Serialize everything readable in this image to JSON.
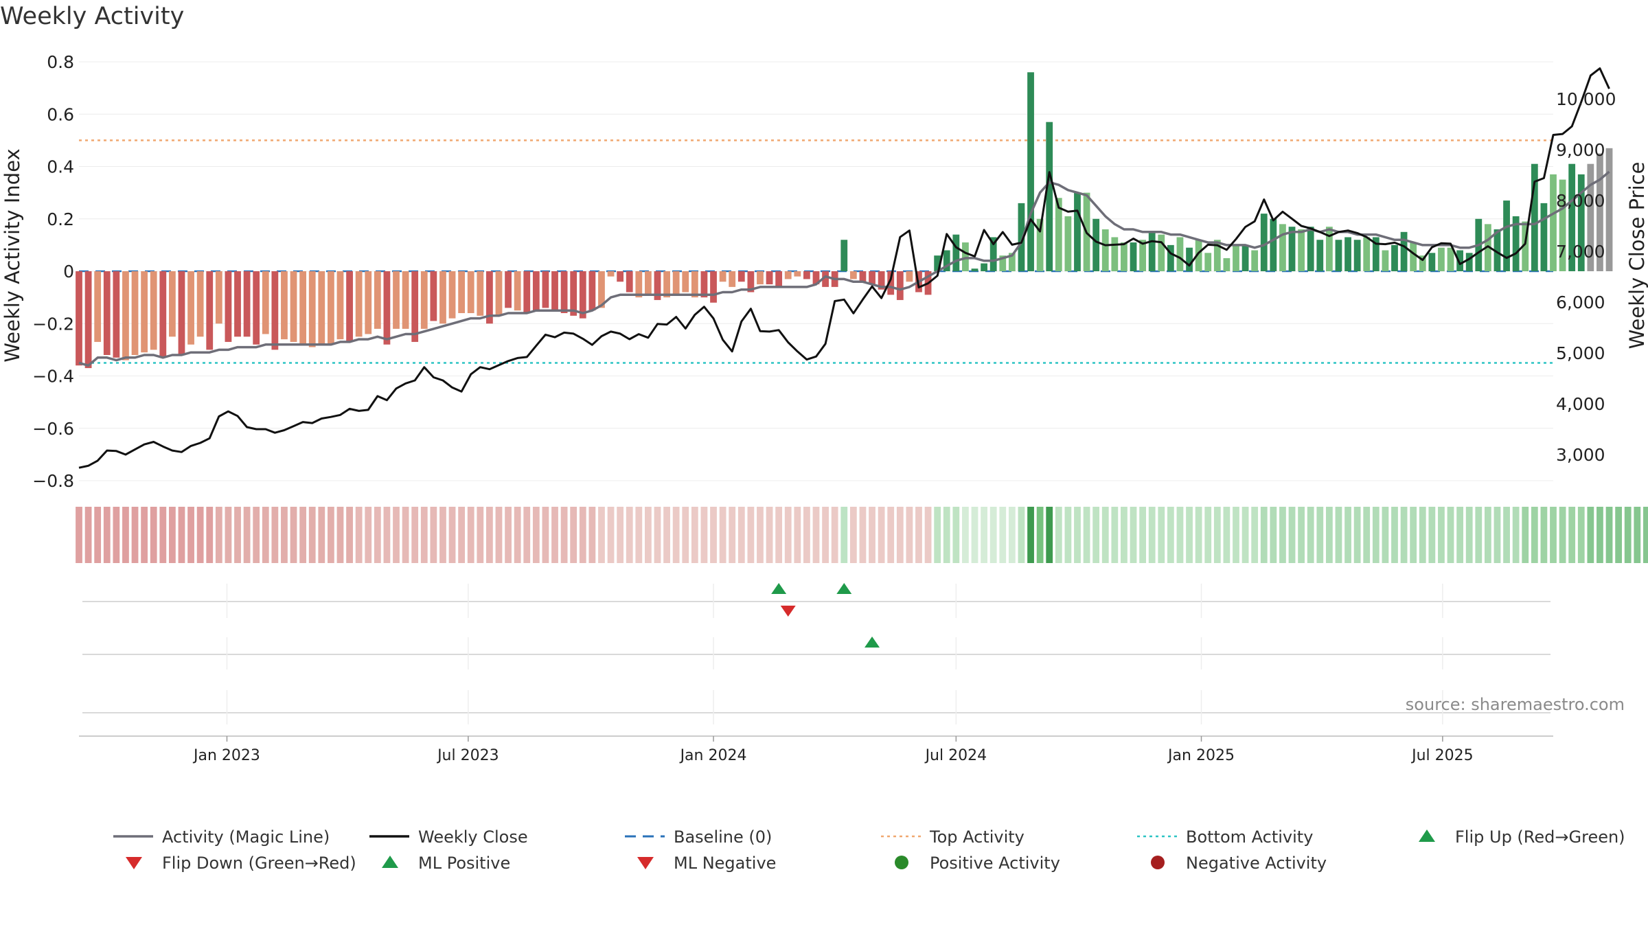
{
  "chart_data": {
    "type": "bar",
    "title": "Weekly Activity",
    "ylabel_left": "Weekly Activity Index",
    "ylabel_right": "Weekly Close Price",
    "left_ylim": [
      -0.8,
      0.8
    ],
    "left_ticks": [
      "0.8",
      "0.6",
      "0.4",
      "0.2",
      "0",
      "−0.2",
      "−0.4",
      "−0.6",
      "−0.8"
    ],
    "left_tick_values": [
      0.8,
      0.6,
      0.4,
      0.2,
      0,
      -0.2,
      -0.4,
      -0.6,
      -0.8
    ],
    "right_ticks": [
      "10,000",
      "9,000",
      "8,000",
      "7,000",
      "6,000",
      "5,000",
      "4,000",
      "3,000"
    ],
    "right_tick_values": [
      10000,
      9000,
      8000,
      7000,
      6000,
      5000,
      4000,
      3000
    ],
    "x_range": [
      "2022-09-12",
      "2025-09-22"
    ],
    "x_ticks": [
      {
        "label": "Jan 2023",
        "date": "2023-01-01"
      },
      {
        "label": "Jul 2023",
        "date": "2023-07-01"
      },
      {
        "label": "Jan 2024",
        "date": "2024-01-01"
      },
      {
        "label": "Jul 2024",
        "date": "2024-07-01"
      },
      {
        "label": "Jan 2025",
        "date": "2025-01-01"
      },
      {
        "label": "Jul 2025",
        "date": "2025-07-01"
      }
    ],
    "top_activity": 0.5,
    "bottom_activity": -0.35,
    "baseline": 0,
    "start_date": "2022-09-12",
    "activity": [
      -0.36,
      -0.37,
      -0.27,
      -0.32,
      -0.33,
      -0.34,
      -0.32,
      -0.31,
      -0.3,
      -0.33,
      -0.25,
      -0.32,
      -0.28,
      -0.25,
      -0.3,
      -0.2,
      -0.27,
      -0.25,
      -0.25,
      -0.28,
      -0.24,
      -0.3,
      -0.26,
      -0.27,
      -0.28,
      -0.29,
      -0.28,
      -0.28,
      -0.26,
      -0.27,
      -0.25,
      -0.24,
      -0.22,
      -0.28,
      -0.22,
      -0.22,
      -0.27,
      -0.22,
      -0.19,
      -0.2,
      -0.18,
      -0.16,
      -0.16,
      -0.17,
      -0.2,
      -0.17,
      -0.14,
      -0.15,
      -0.16,
      -0.15,
      -0.14,
      -0.15,
      -0.16,
      -0.17,
      -0.18,
      -0.15,
      -0.14,
      -0.02,
      -0.04,
      -0.08,
      -0.1,
      -0.09,
      -0.11,
      -0.1,
      -0.09,
      -0.08,
      -0.1,
      -0.1,
      -0.12,
      -0.04,
      -0.06,
      -0.04,
      -0.08,
      -0.05,
      -0.05,
      -0.06,
      -0.03,
      -0.02,
      -0.03,
      -0.05,
      -0.06,
      -0.06,
      0.12,
      -0.03,
      -0.04,
      -0.05,
      -0.07,
      -0.09,
      -0.11,
      -0.04,
      -0.08,
      -0.09,
      0.06,
      0.08,
      0.14,
      0.11,
      0.01,
      0.03,
      0.13,
      0.06,
      0.07,
      0.26,
      0.76,
      0.2,
      0.57,
      0.28,
      0.21,
      0.3,
      0.3,
      0.2,
      0.16,
      0.13,
      0.11,
      0.11,
      0.12,
      0.15,
      0.14,
      0.1,
      0.13,
      0.09,
      0.12,
      0.07,
      0.12,
      0.05,
      0.1,
      0.1,
      0.08,
      0.22,
      0.2,
      0.18,
      0.17,
      0.16,
      0.17,
      0.12,
      0.17,
      0.12,
      0.13,
      0.12,
      0.13,
      0.13,
      0.08,
      0.1,
      0.15,
      0.11,
      0.06,
      0.07,
      0.09,
      0.09,
      0.08,
      0.07,
      0.2,
      0.18,
      0.16,
      0.27,
      0.21,
      0.19,
      0.41,
      0.26,
      0.37,
      0.35,
      0.41,
      0.37,
      0.41,
      0.45,
      0.47
    ],
    "activity_colors": [
      "#c9585a",
      "#c9585a",
      "#e09474",
      "#c9585a",
      "#c9585a",
      "#e09474",
      "#e09474",
      "#e09474",
      "#e09474",
      "#c9585a",
      "#e09474",
      "#c9585a",
      "#e09474",
      "#e09474",
      "#c9585a",
      "#e09474",
      "#c9585a",
      "#c9585a",
      "#c9585a",
      "#c9585a",
      "#e09474",
      "#c9585a",
      "#e09474",
      "#e09474",
      "#e09474",
      "#e09474",
      "#e09474",
      "#e09474",
      "#e09474",
      "#c9585a",
      "#e09474",
      "#e09474",
      "#e09474",
      "#c9585a",
      "#e09474",
      "#e09474",
      "#c9585a",
      "#e09474",
      "#c9585a",
      "#e09474",
      "#e09474",
      "#e09474",
      "#e09474",
      "#e09474",
      "#c9585a",
      "#e09474",
      "#c9585a",
      "#e09474",
      "#c9585a",
      "#c9585a",
      "#c9585a",
      "#c9585a",
      "#c9585a",
      "#c9585a",
      "#c9585a",
      "#c9585a",
      "#e09474",
      "#e09474",
      "#c9585a",
      "#c9585a",
      "#e09474",
      "#e09474",
      "#c9585a",
      "#e09474",
      "#e09474",
      "#e09474",
      "#e09474",
      "#c9585a",
      "#c9585a",
      "#e09474",
      "#e09474",
      "#c9585a",
      "#c9585a",
      "#e09474",
      "#c9585a",
      "#c9585a",
      "#e09474",
      "#e09474",
      "#c9585a",
      "#c9585a",
      "#c9585a",
      "#c9585a",
      "#2e8b57",
      "#e09474",
      "#c9585a",
      "#c9585a",
      "#c9585a",
      "#c9585a",
      "#c9585a",
      "#e09474",
      "#c9585a",
      "#c9585a",
      "#2e8b57",
      "#2e8b57",
      "#2e8b57",
      "#7cbf7e",
      "#2e8b57",
      "#2e8b57",
      "#2e8b57",
      "#7cbf7e",
      "#7cbf7e",
      "#2e8b57",
      "#2e8b57",
      "#7cbf7e",
      "#2e8b57",
      "#7cbf7e",
      "#7cbf7e",
      "#2e8b57",
      "#7cbf7e",
      "#2e8b57",
      "#7cbf7e",
      "#7cbf7e",
      "#7cbf7e",
      "#2e8b57",
      "#7cbf7e",
      "#2e8b57",
      "#7cbf7e",
      "#2e8b57",
      "#7cbf7e",
      "#2e8b57",
      "#7cbf7e",
      "#7cbf7e",
      "#7cbf7e",
      "#7cbf7e",
      "#7cbf7e",
      "#2e8b57",
      "#7cbf7e",
      "#2e8b57",
      "#2e8b57",
      "#7cbf7e",
      "#2e8b57",
      "#7cbf7e",
      "#2e8b57",
      "#2e8b57",
      "#7cbf7e",
      "#2e8b57",
      "#2e8b57",
      "#2e8b57",
      "#7cbf7e",
      "#2e8b57",
      "#7cbf7e",
      "#2e8b57",
      "#2e8b57",
      "#7cbf7e",
      "#7cbf7e",
      "#2e8b57",
      "#7cbf7e",
      "#7cbf7e",
      "#2e8b57",
      "#2e8b57",
      "#2e8b57",
      "#7cbf7e",
      "#2e8b57",
      "#2e8b57",
      "#2e8b57",
      "#7cbf7e",
      "#2e8b57",
      "#2e8b57",
      "#7cbf7e",
      "#7cbf7e",
      "#2e8b57",
      "#2e8b57"
    ],
    "magic_line": [
      -0.35,
      -0.36,
      -0.33,
      -0.33,
      -0.34,
      -0.33,
      -0.33,
      -0.32,
      -0.32,
      -0.33,
      -0.32,
      -0.32,
      -0.31,
      -0.31,
      -0.31,
      -0.3,
      -0.3,
      -0.29,
      -0.29,
      -0.29,
      -0.28,
      -0.28,
      -0.28,
      -0.28,
      -0.28,
      -0.28,
      -0.28,
      -0.28,
      -0.27,
      -0.27,
      -0.26,
      -0.26,
      -0.25,
      -0.26,
      -0.25,
      -0.24,
      -0.24,
      -0.23,
      -0.22,
      -0.21,
      -0.2,
      -0.19,
      -0.18,
      -0.18,
      -0.17,
      -0.17,
      -0.16,
      -0.16,
      -0.16,
      -0.15,
      -0.15,
      -0.15,
      -0.15,
      -0.15,
      -0.16,
      -0.15,
      -0.13,
      -0.1,
      -0.09,
      -0.09,
      -0.09,
      -0.09,
      -0.09,
      -0.09,
      -0.09,
      -0.09,
      -0.09,
      -0.09,
      -0.09,
      -0.08,
      -0.08,
      -0.07,
      -0.07,
      -0.06,
      -0.06,
      -0.06,
      -0.06,
      -0.06,
      -0.06,
      -0.05,
      -0.02,
      -0.03,
      -0.03,
      -0.04,
      -0.04,
      -0.05,
      -0.06,
      -0.06,
      -0.07,
      -0.06,
      -0.04,
      -0.02,
      0.0,
      0.02,
      0.04,
      0.05,
      0.05,
      0.04,
      0.04,
      0.05,
      0.06,
      0.11,
      0.22,
      0.3,
      0.34,
      0.33,
      0.31,
      0.3,
      0.29,
      0.25,
      0.21,
      0.18,
      0.16,
      0.16,
      0.15,
      0.15,
      0.15,
      0.14,
      0.14,
      0.13,
      0.12,
      0.11,
      0.11,
      0.1,
      0.1,
      0.1,
      0.09,
      0.1,
      0.12,
      0.14,
      0.15,
      0.15,
      0.16,
      0.15,
      0.16,
      0.15,
      0.15,
      0.14,
      0.14,
      0.14,
      0.13,
      0.12,
      0.12,
      0.11,
      0.1,
      0.1,
      0.1,
      0.1,
      0.09,
      0.09,
      0.1,
      0.12,
      0.15,
      0.17,
      0.18,
      0.18,
      0.18,
      0.2,
      0.22,
      0.24,
      0.27,
      0.3,
      0.33,
      0.35,
      0.38
    ],
    "weekly_close": [
      2740,
      2780,
      2880,
      3080,
      3070,
      3000,
      3100,
      3200,
      3250,
      3160,
      3080,
      3050,
      3170,
      3230,
      3320,
      3750,
      3850,
      3760,
      3540,
      3500,
      3500,
      3430,
      3480,
      3560,
      3640,
      3620,
      3710,
      3740,
      3780,
      3900,
      3860,
      3880,
      4150,
      4070,
      4300,
      4400,
      4460,
      4720,
      4520,
      4460,
      4320,
      4240,
      4580,
      4720,
      4680,
      4760,
      4840,
      4900,
      4920,
      5140,
      5360,
      5310,
      5400,
      5380,
      5280,
      5160,
      5330,
      5420,
      5380,
      5270,
      5370,
      5300,
      5570,
      5560,
      5710,
      5480,
      5750,
      5910,
      5680,
      5260,
      5030,
      5620,
      5870,
      5430,
      5420,
      5450,
      5210,
      5030,
      4870,
      4930,
      5180,
      6020,
      6050,
      5780,
      6050,
      6310,
      6080,
      6450,
      7280,
      7410,
      6290,
      6370,
      6520,
      7340,
      7080,
      6970,
      6900,
      7420,
      7140,
      7380,
      7130,
      7170,
      7630,
      7390,
      8560,
      7860,
      7780,
      7800,
      7360,
      7190,
      7120,
      7130,
      7140,
      7250,
      7150,
      7200,
      7180,
      6960,
      6870,
      6720,
      6970,
      7130,
      7120,
      7030,
      7240,
      7480,
      7590,
      8020,
      7610,
      7780,
      7640,
      7500,
      7450,
      7380,
      7300,
      7380,
      7410,
      7360,
      7280,
      7150,
      7140,
      7170,
      7100,
      6960,
      6830,
      7080,
      7160,
      7150,
      6750,
      6850,
      6980,
      7100,
      6980,
      6870,
      6960,
      7150,
      8370,
      8440,
      9290,
      9310,
      9460,
      9940,
      10460,
      10600,
      10200
    ],
    "color_strip": [
      "#dfa0a0",
      "#dfa0a0",
      "#dfa0a0",
      "#dfa0a0",
      "#dfa0a0",
      "#dfa0a0",
      "#dfa0a0",
      "#dfa0a0",
      "#dfa0a0",
      "#dfa0a0",
      "#dfa0a0",
      "#dfa0a0",
      "#dfa0a0",
      "#dfa0a0",
      "#dfa0a0",
      "#e2aeab",
      "#e2aeab",
      "#e2aeab",
      "#e2aeab",
      "#e2aeab",
      "#e2aeab",
      "#e2aeab",
      "#e2aeab",
      "#e2aeab",
      "#e2aeab",
      "#e2aeab",
      "#e2aeab",
      "#e2aeab",
      "#e2aeab",
      "#e2aeab",
      "#e6b9b6",
      "#e6b9b6",
      "#e6b9b6",
      "#e6b9b6",
      "#e6b9b6",
      "#e6b9b6",
      "#e6b9b6",
      "#e6b9b6",
      "#e6b9b6",
      "#e6b9b6",
      "#e6b9b6",
      "#e6b9b6",
      "#e6b9b6",
      "#e6b9b6",
      "#e6b9b6",
      "#e6b9b6",
      "#e6b9b6",
      "#e6b9b6",
      "#e6b9b6",
      "#e6b9b6",
      "#e6b9b6",
      "#e6b9b6",
      "#e6b9b6",
      "#e6b9b6",
      "#e6b9b6",
      "#e6b9b6",
      "#ebcac6",
      "#ebcac6",
      "#ebcac6",
      "#ebcac6",
      "#ebcac6",
      "#ebcac6",
      "#ebcac6",
      "#ebcac6",
      "#ebcac6",
      "#ebcac6",
      "#ebcac6",
      "#ebcac6",
      "#ebcac6",
      "#ebcac6",
      "#ebcac6",
      "#ebcac6",
      "#ebcac6",
      "#ebcac6",
      "#ebcac6",
      "#ebcac6",
      "#ebcac6",
      "#ebcac6",
      "#ebcac6",
      "#ebcac6",
      "#ebcac6",
      "#ebcac6",
      "#bde3c4",
      "#ebcac6",
      "#ebcac6",
      "#ebcac6",
      "#ebcac6",
      "#ebcac6",
      "#ebcac6",
      "#ebcac6",
      "#ebcac6",
      "#ebcac6",
      "#bfe3c3",
      "#bfe3c3",
      "#bfe3c3",
      "#d5ecd7",
      "#d5ecd7",
      "#d5ecd7",
      "#d5ecd7",
      "#d5ecd7",
      "#d5ecd7",
      "#bfe3c3",
      "#3e9a4f",
      "#77c27f",
      "#3e9a4f",
      "#bfe3c3",
      "#bfe3c3",
      "#bfe3c3",
      "#bfe3c3",
      "#bfe3c3",
      "#bfe3c3",
      "#bfe3c3",
      "#bfe3c3",
      "#bfe3c3",
      "#bfe3c3",
      "#bfe3c3",
      "#bfe3c3",
      "#bfe3c3",
      "#bfe3c3",
      "#bfe3c3",
      "#bfe3c3",
      "#bfe3c3",
      "#bfe3c3",
      "#bfe3c3",
      "#bfe3c3",
      "#bfe3c3",
      "#bfe3c3",
      "#b1dcb7",
      "#b1dcb7",
      "#b1dcb7",
      "#b1dcb7",
      "#b1dcb7",
      "#b1dcb7",
      "#b1dcb7",
      "#b1dcb7",
      "#b1dcb7",
      "#b1dcb7",
      "#b1dcb7",
      "#b1dcb7",
      "#b1dcb7",
      "#b1dcb7",
      "#b1dcb7",
      "#b1dcb7",
      "#b1dcb7",
      "#b1dcb7",
      "#b1dcb7",
      "#b1dcb7",
      "#b1dcb7",
      "#b1dcb7",
      "#b1dcb7",
      "#b1dcb7",
      "#b1dcb7",
      "#b1dcb7",
      "#b1dcb7",
      "#b1dcb7",
      "#9ed3a4",
      "#9ed3a4",
      "#9ed3a4",
      "#9ed3a4",
      "#9ed3a4",
      "#9ed3a4",
      "#9ed3a4",
      "#86c68f",
      "#86c68f",
      "#86c68f",
      "#86c68f",
      "#86c68f",
      "#86c68f",
      "#86c68f",
      "#86c68f",
      "#86c68f",
      "#86c68f"
    ],
    "events_row1_up": [
      "2024-02-19",
      "2024-04-08"
    ],
    "events_row1_down": [
      "2024-02-26"
    ],
    "events_row2_up": [
      "2024-04-29"
    ],
    "colors": {
      "positive_dark": "#2e8b57",
      "positive_light": "#7cbf7e",
      "negative_dark": "#c9585a",
      "negative_light": "#e09474",
      "magic_line": "#6e6e78",
      "close_line": "#111111",
      "baseline": "#2a72b8",
      "top_activity": "#f0a870",
      "bottom_activity": "#2cc4c4",
      "flip_up": "#1f9a4a",
      "flip_down": "#d62b2b",
      "positive_dot": "#2a8a2a",
      "negative_dot": "#a51f1f"
    }
  },
  "source_label": "source: sharemaestro.com",
  "legend": [
    {
      "label": "Activity (Magic Line)",
      "kind": "line",
      "icon": "grey-line"
    },
    {
      "label": "Weekly Close",
      "kind": "line",
      "icon": "black-line"
    },
    {
      "label": "Baseline (0)",
      "kind": "dash",
      "icon": "blue-dash"
    },
    {
      "label": "Top Activity",
      "kind": "dot-line",
      "icon": "orange-dotted"
    },
    {
      "label": "Bottom Activity",
      "kind": "dot-line",
      "icon": "cyan-dotted"
    },
    {
      "label": "Flip Up (Red→Green)",
      "kind": "tri-up",
      "icon": "green-triangle-up"
    },
    {
      "label": "Flip Down (Green→Red)",
      "kind": "tri-down",
      "icon": "red-triangle-down"
    },
    {
      "label": "ML Positive",
      "kind": "tri-up",
      "icon": "green-triangle-up"
    },
    {
      "label": "ML Negative",
      "kind": "tri-down",
      "icon": "red-triangle-down"
    },
    {
      "label": "Positive Activity",
      "kind": "dot",
      "icon": "green-dot"
    },
    {
      "label": "Negative Activity",
      "kind": "dot",
      "icon": "red-dot"
    }
  ]
}
